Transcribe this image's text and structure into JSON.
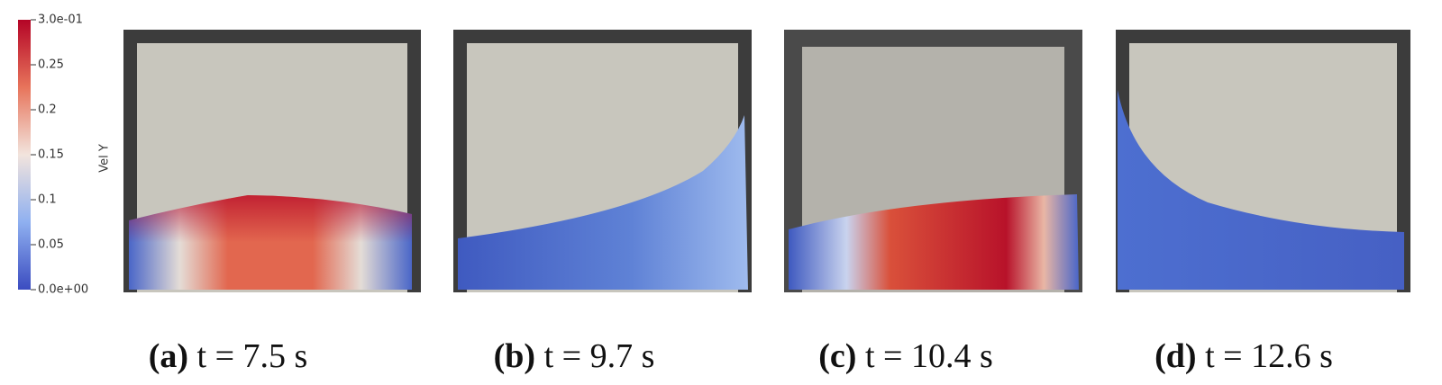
{
  "colorbar": {
    "label": "Vel Y",
    "ticks": [
      "3.0e-01",
      "0.25",
      "0.2",
      "0.15",
      "0.1",
      "0.05",
      "0.0e+00"
    ]
  },
  "panels": [
    {
      "letter": "(a)",
      "caption": "t = 7.5 s"
    },
    {
      "letter": "(b)",
      "caption": "t = 9.7 s"
    },
    {
      "letter": "(c)",
      "caption": "t = 10.4 s"
    },
    {
      "letter": "(d)",
      "caption": "t = 12.6 s"
    }
  ]
}
